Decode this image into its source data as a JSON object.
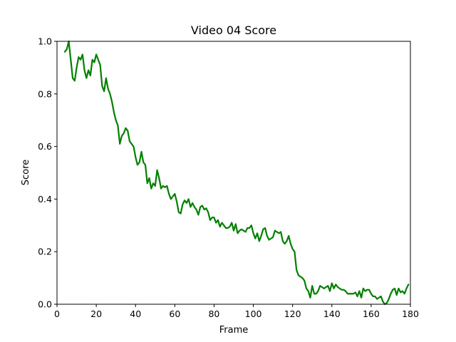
{
  "chart_data": {
    "type": "line",
    "title": "Video 04 Score",
    "xlabel": "Frame",
    "ylabel": "Score",
    "xlim": [
      0,
      180
    ],
    "ylim": [
      0,
      1.0
    ],
    "xticks": [
      "0",
      "20",
      "40",
      "60",
      "80",
      "100",
      "120",
      "140",
      "160",
      "180"
    ],
    "yticks": [
      "0.0",
      "0.2",
      "0.4",
      "0.6",
      "0.8",
      "1.0"
    ],
    "grid": false,
    "legend": "none",
    "series": [
      {
        "color": "#008000",
        "x": [
          4,
          5,
          6,
          7,
          8,
          9,
          10,
          11,
          12,
          13,
          14,
          15,
          16,
          17,
          18,
          19,
          20,
          21,
          22,
          23,
          24,
          25,
          26,
          27,
          28,
          29,
          30,
          31,
          32,
          33,
          34,
          35,
          36,
          37,
          38,
          39,
          40,
          41,
          42,
          43,
          44,
          45,
          46,
          47,
          48,
          49,
          50,
          51,
          52,
          53,
          54,
          55,
          56,
          57,
          58,
          59,
          60,
          61,
          62,
          63,
          64,
          65,
          66,
          67,
          68,
          69,
          70,
          71,
          72,
          73,
          74,
          75,
          76,
          77,
          78,
          79,
          80,
          81,
          82,
          83,
          84,
          85,
          86,
          87,
          88,
          89,
          90,
          91,
          92,
          93,
          94,
          95,
          96,
          97,
          98,
          99,
          100,
          101,
          102,
          103,
          104,
          105,
          106,
          107,
          108,
          109,
          110,
          111,
          112,
          113,
          114,
          115,
          116,
          117,
          118,
          119,
          120,
          121,
          122,
          123,
          124,
          125,
          126,
          127,
          128,
          129,
          130,
          131,
          132,
          133,
          134,
          135,
          136,
          137,
          138,
          139,
          140,
          141,
          142,
          143,
          144,
          145,
          146,
          147,
          148,
          149,
          150,
          151,
          152,
          153,
          154,
          155,
          156,
          157,
          158,
          159,
          160,
          161,
          162,
          163,
          164,
          165,
          166,
          167,
          168,
          169,
          170,
          171,
          172,
          173,
          174,
          175,
          176,
          177,
          178,
          179
        ],
        "y": [
          0.96,
          0.97,
          1.0,
          0.93,
          0.86,
          0.85,
          0.9,
          0.94,
          0.93,
          0.95,
          0.89,
          0.86,
          0.89,
          0.87,
          0.93,
          0.92,
          0.95,
          0.93,
          0.91,
          0.83,
          0.81,
          0.86,
          0.82,
          0.8,
          0.77,
          0.73,
          0.7,
          0.68,
          0.61,
          0.64,
          0.65,
          0.67,
          0.66,
          0.62,
          0.61,
          0.6,
          0.56,
          0.53,
          0.54,
          0.58,
          0.54,
          0.53,
          0.46,
          0.48,
          0.44,
          0.46,
          0.45,
          0.51,
          0.48,
          0.44,
          0.45,
          0.445,
          0.45,
          0.42,
          0.4,
          0.41,
          0.42,
          0.39,
          0.35,
          0.345,
          0.38,
          0.395,
          0.385,
          0.4,
          0.37,
          0.385,
          0.37,
          0.36,
          0.34,
          0.37,
          0.375,
          0.36,
          0.365,
          0.35,
          0.32,
          0.33,
          0.33,
          0.31,
          0.32,
          0.295,
          0.31,
          0.3,
          0.29,
          0.29,
          0.295,
          0.31,
          0.28,
          0.305,
          0.27,
          0.28,
          0.285,
          0.28,
          0.275,
          0.29,
          0.29,
          0.3,
          0.27,
          0.25,
          0.27,
          0.24,
          0.26,
          0.285,
          0.29,
          0.26,
          0.245,
          0.25,
          0.255,
          0.28,
          0.275,
          0.27,
          0.275,
          0.24,
          0.23,
          0.24,
          0.26,
          0.23,
          0.21,
          0.2,
          0.13,
          0.11,
          0.105,
          0.1,
          0.09,
          0.06,
          0.05,
          0.025,
          0.07,
          0.04,
          0.04,
          0.05,
          0.07,
          0.065,
          0.06,
          0.065,
          0.07,
          0.05,
          0.08,
          0.06,
          0.075,
          0.065,
          0.06,
          0.055,
          0.055,
          0.05,
          0.04,
          0.04,
          0.04,
          0.04,
          0.045,
          0.03,
          0.05,
          0.025,
          0.06,
          0.05,
          0.055,
          0.055,
          0.04,
          0.03,
          0.03,
          0.02,
          0.025,
          0.03,
          0.01,
          0.0,
          0.005,
          0.02,
          0.04,
          0.055,
          0.06,
          0.035,
          0.06,
          0.045,
          0.05,
          0.04,
          0.06,
          0.075
        ]
      }
    ]
  }
}
